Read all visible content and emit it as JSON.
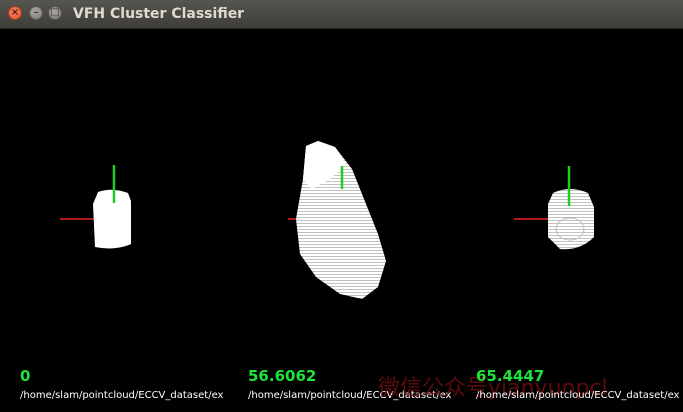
{
  "window": {
    "title": "VFH Cluster Classifier",
    "buttons": {
      "close": "×",
      "minimize": "–",
      "maximize": "□"
    }
  },
  "clusters": [
    {
      "score": "0",
      "path": "/home/slam/pointcloud/ECCV_dataset/ex"
    },
    {
      "score": "56.6062",
      "path": "/home/slam/pointcloud/ECCV_dataset/ex"
    },
    {
      "score": "65.4447",
      "path": "/home/slam/pointcloud/ECCV_dataset/ex"
    }
  ],
  "colors": {
    "score_text": "#1ee33a",
    "axis_x": "#b01818",
    "axis_y": "#22cc22",
    "cloud": "#ffffff"
  },
  "watermark": "微信公众号yianyunpcl"
}
